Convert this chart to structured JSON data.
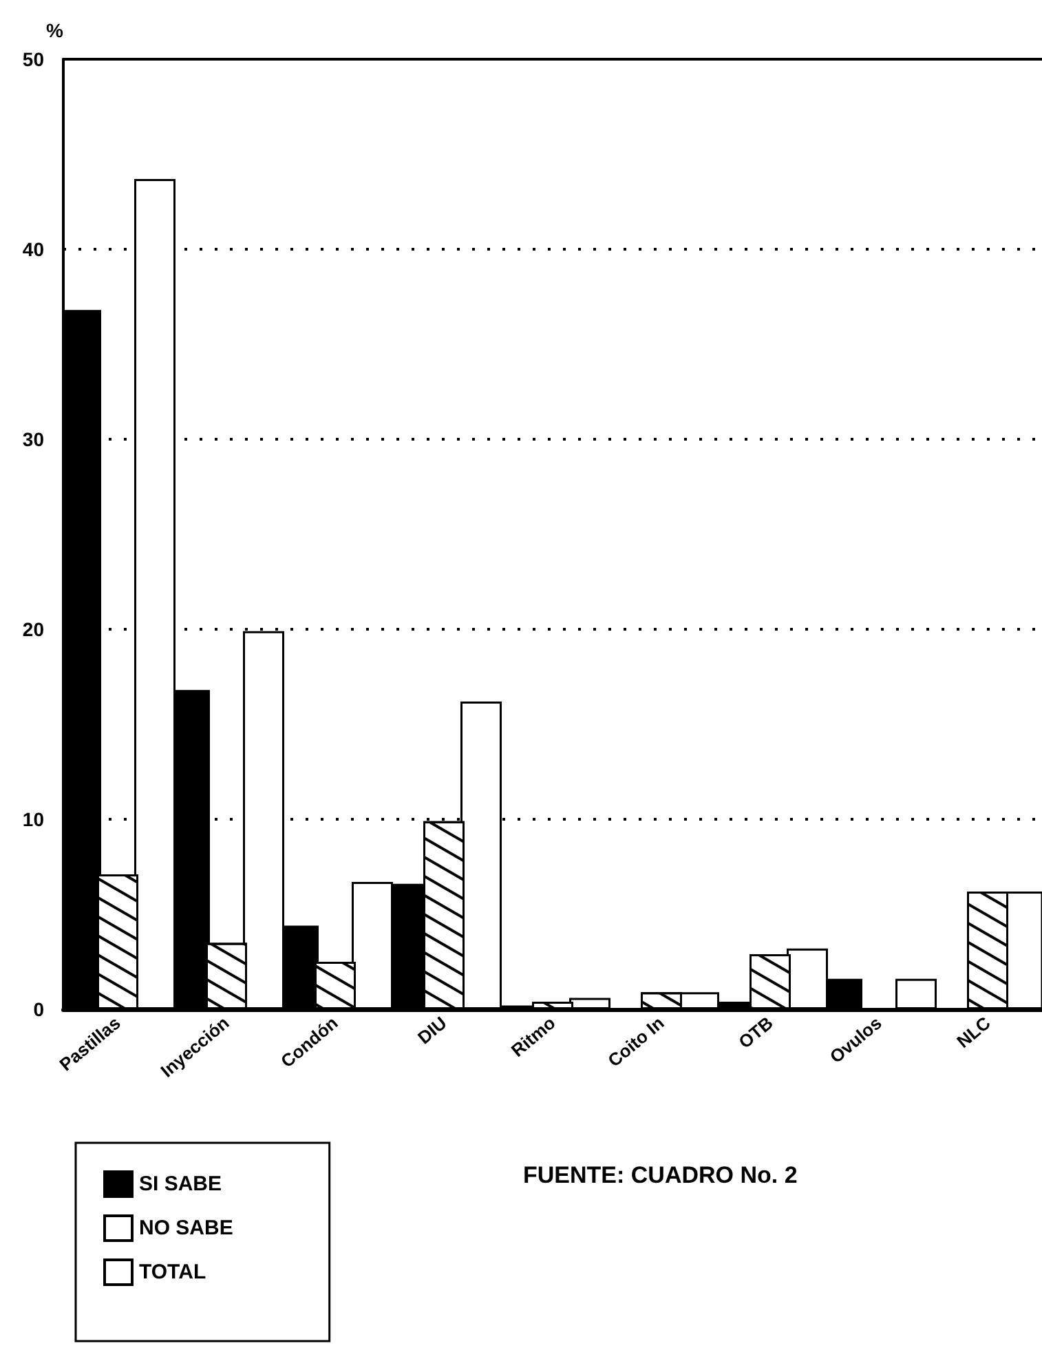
{
  "chart_data": {
    "type": "bar",
    "ylabel": "%",
    "categories": [
      "Pastillas",
      "Inyección",
      "Condón",
      "DIU",
      "Ritmo",
      "Coito In",
      "OTB",
      "Ovulos",
      "NLC"
    ],
    "series": [
      {
        "name": "SI SABE",
        "color": "#000000",
        "values": [
          36.8,
          16.8,
          4.4,
          6.6,
          0.2,
          0,
          0.4,
          1.6,
          0
        ]
      },
      {
        "name": "NO SABE",
        "color": "#ffffff",
        "values": [
          7.1,
          3.5,
          2.5,
          9.9,
          0.4,
          0.9,
          2.9,
          0,
          6.2
        ]
      },
      {
        "name": "TOTAL",
        "color": "#ffffff",
        "values": [
          43.7,
          19.9,
          6.7,
          16.2,
          0.6,
          0.9,
          3.2,
          1.6,
          6.2
        ]
      }
    ],
    "ylim": [
      0,
      50
    ],
    "yticks": [
      0,
      10,
      20,
      30,
      40,
      50
    ],
    "grid": "y",
    "legend": "bottom left",
    "annotations": [
      "FUENTE: CUADRO No. 2"
    ]
  }
}
